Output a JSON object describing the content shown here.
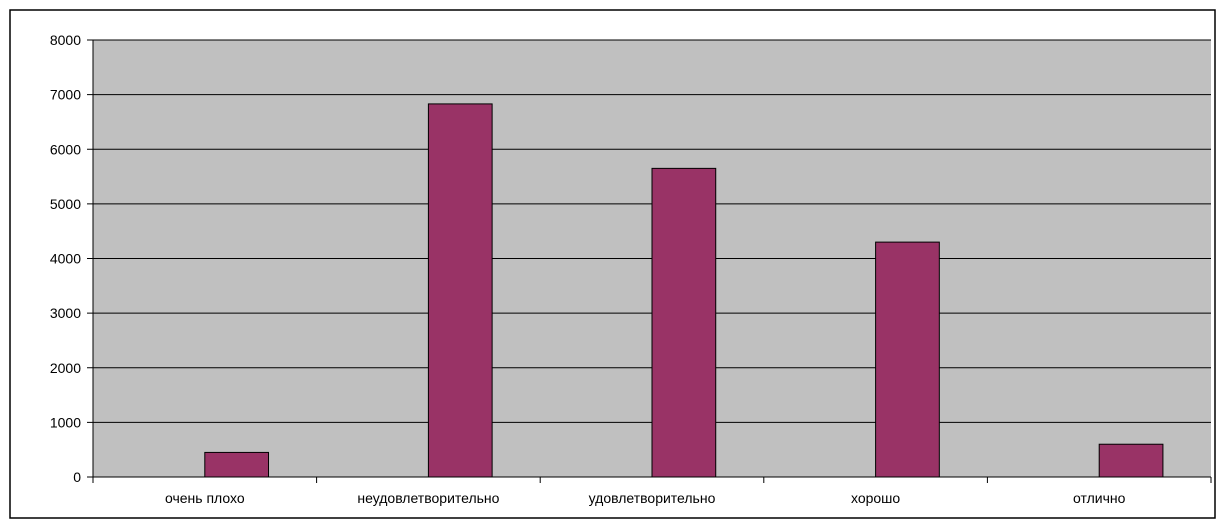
{
  "chart_data": {
    "type": "bar",
    "title": "",
    "xlabel": "",
    "ylabel": "",
    "categories": [
      "очень плохо",
      "неудовлетворительно",
      "удовлетворительно",
      "хорошо",
      "отлично"
    ],
    "values": [
      450,
      6830,
      5650,
      4300,
      600
    ],
    "ylim": [
      0,
      8000
    ],
    "yticks": [
      0,
      1000,
      2000,
      3000,
      4000,
      5000,
      6000,
      7000,
      8000
    ],
    "grid": true,
    "legend": "none",
    "colors": {
      "bar_fill": "#993366",
      "bar_stroke": "#000000",
      "plot_background": "#c0c0c0",
      "gridline": "#000000"
    }
  }
}
